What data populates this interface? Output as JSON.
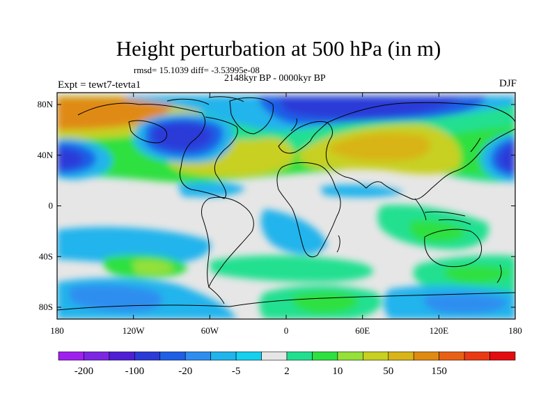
{
  "title": "Height perturbation at 500 hPa (in m)",
  "stats": "rmsd= 15.1039 diff= -3.53995e-08",
  "period": "2148kyr BP - 0000kyr BP",
  "experiment": "Expt = tewt7-tevta1",
  "season": "DJF",
  "y_ticks": [
    "80N",
    "40N",
    "0",
    "40S",
    "80S"
  ],
  "x_ticks": [
    "180",
    "120W",
    "60W",
    "0",
    "60E",
    "120E",
    "180"
  ],
  "colorbar": {
    "colors": [
      "#a020f0",
      "#7c26e4",
      "#4f1fd6",
      "#2a3bd8",
      "#1e5fe6",
      "#2d8ef0",
      "#20b4ec",
      "#16d0f0",
      "#e6e6e6",
      "#20e090",
      "#2ee040",
      "#96e03a",
      "#c8d020",
      "#d8b418",
      "#e08a12",
      "#e86014",
      "#ea3a14",
      "#e40c10"
    ],
    "labels": [
      "-200",
      "-100",
      "-20",
      "-5",
      "2",
      "10",
      "50",
      "150"
    ]
  }
}
